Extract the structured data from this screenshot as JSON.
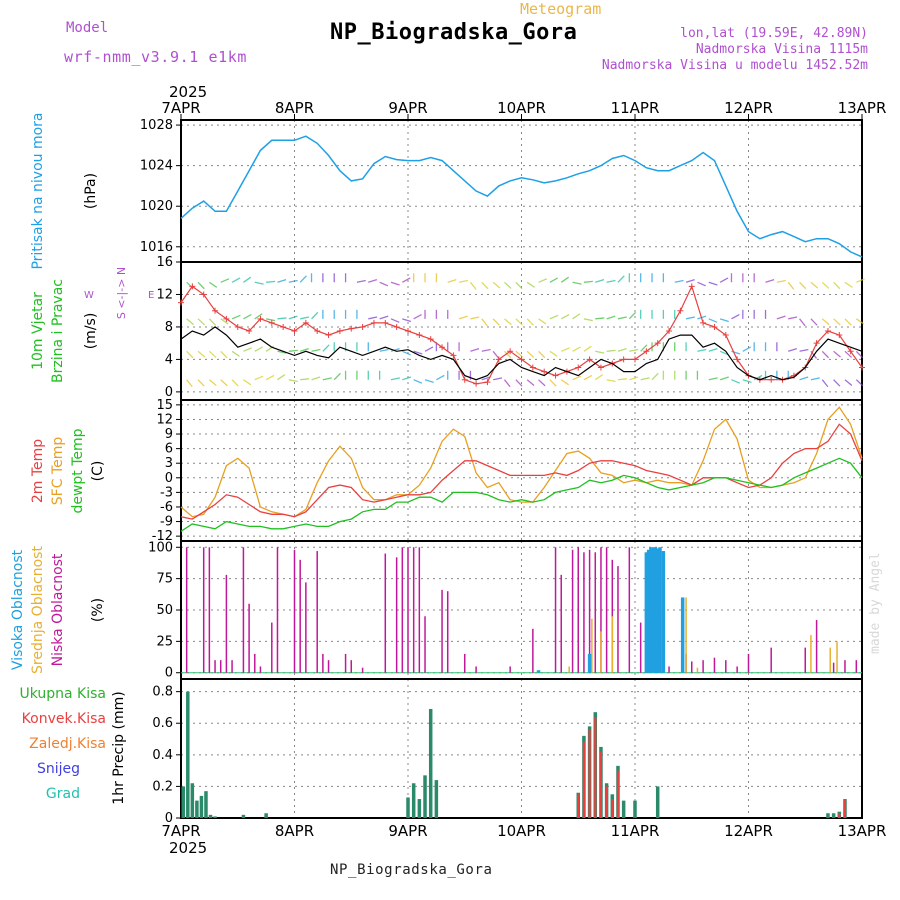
{
  "header": {
    "title": "NP_Biogradska_Gora",
    "subtitle": "Meteogram",
    "model_label": "Model",
    "model_name": "wrf-nmm_v3.9.1 e1km",
    "info": {
      "lonlat": "lon,lat (19.59E, 42.89N)",
      "elevation": "Nadmorska Visina 1115m",
      "model_elevation": "Nadmorska Visina u modelu 1452.52m"
    },
    "bottom_label": "NP_Biogradska_Gora",
    "made_by": "made by Angel"
  },
  "colors": {
    "pressure": "#1ea0e6",
    "wind_speed": "#000000",
    "wind_gust": "#e84040",
    "temp_2m": "#e84040",
    "temp_sfc": "#e8a020",
    "temp_dewpt": "#20c020",
    "cloud_high": "#20a0e0",
    "cloud_mid": "#e8b030",
    "cloud_low": "#c0189a",
    "precip_total": "#30b030",
    "precip_conv": "#e84040",
    "precip_frozen": "#f08030",
    "snow": "#4040e0",
    "hail": "#20c0b0",
    "grid": "#888888"
  },
  "chart_data": [
    {
      "type": "line",
      "panel": "pressure",
      "year": "2025",
      "top_ticks": [
        "7APR",
        "8APR",
        "9APR",
        "10APR",
        "11APR",
        "12APR",
        "13APR"
      ],
      "ylabel": "Pritisak na nivou mora",
      "unit": "(hPa)",
      "ylim": [
        1014.5,
        1028.5
      ],
      "yticks": [
        1016,
        1020,
        1024,
        1028
      ],
      "x_days": [
        0,
        0.1,
        0.2,
        0.3,
        0.4,
        0.5,
        0.6,
        0.7,
        0.8,
        0.9,
        1.0,
        1.1,
        1.2,
        1.3,
        1.4,
        1.5,
        1.6,
        1.7,
        1.8,
        1.9,
        2.0,
        2.1,
        2.2,
        2.3,
        2.4,
        2.5,
        2.6,
        2.7,
        2.8,
        2.9,
        3.0,
        3.1,
        3.2,
        3.3,
        3.4,
        3.5,
        3.6,
        3.7,
        3.8,
        3.9,
        4.0,
        4.1,
        4.2,
        4.3,
        4.4,
        4.5,
        4.6,
        4.7,
        4.8,
        4.9,
        5.0,
        5.1,
        5.2,
        5.3,
        5.4,
        5.5,
        5.6,
        5.7,
        5.8,
        5.9,
        6.0
      ],
      "series": [
        {
          "name": "pressure",
          "values": [
            1018.8,
            1019.8,
            1020.5,
            1019.5,
            1019.5,
            1021.5,
            1023.5,
            1025.5,
            1026.5,
            1026.5,
            1026.5,
            1026.9,
            1026.2,
            1025.0,
            1023.5,
            1022.5,
            1022.7,
            1024.2,
            1024.9,
            1024.6,
            1024.5,
            1024.5,
            1024.8,
            1024.5,
            1023.5,
            1022.5,
            1021.5,
            1021.0,
            1022.0,
            1022.5,
            1022.8,
            1022.6,
            1022.3,
            1022.5,
            1022.8,
            1023.2,
            1023.5,
            1024.0,
            1024.7,
            1025.0,
            1024.5,
            1023.8,
            1023.5,
            1023.5,
            1024.0,
            1024.5,
            1025.3,
            1024.5,
            1022.0,
            1019.5,
            1017.5,
            1016.8,
            1017.2,
            1017.5,
            1017.0,
            1016.5,
            1016.8,
            1016.8,
            1016.3,
            1015.5,
            1015.0
          ]
        }
      ]
    },
    {
      "type": "line",
      "panel": "wind",
      "ylabel": "10m Vjetar Brzina i Pravac",
      "unit": "(m/s)",
      "ylim": [
        -1,
        16
      ],
      "yticks": [
        0,
        4,
        8,
        12,
        16
      ],
      "compass": "S <-|-> N",
      "compass_w": "W",
      "compass_e": "E",
      "x_days": [
        0,
        0.1,
        0.2,
        0.3,
        0.4,
        0.5,
        0.6,
        0.7,
        0.8,
        0.9,
        1.0,
        1.1,
        1.2,
        1.3,
        1.4,
        1.5,
        1.6,
        1.7,
        1.8,
        1.9,
        2.0,
        2.1,
        2.2,
        2.3,
        2.4,
        2.5,
        2.6,
        2.7,
        2.8,
        2.9,
        3.0,
        3.1,
        3.2,
        3.3,
        3.4,
        3.5,
        3.6,
        3.7,
        3.8,
        3.9,
        4.0,
        4.1,
        4.2,
        4.3,
        4.4,
        4.5,
        4.6,
        4.7,
        4.8,
        4.9,
        5.0,
        5.1,
        5.2,
        5.3,
        5.4,
        5.5,
        5.6,
        5.7,
        5.8,
        5.9,
        6.0
      ],
      "series": [
        {
          "name": "wind_speed",
          "values": [
            6.5,
            7.5,
            7.0,
            8.0,
            7.0,
            5.5,
            6.0,
            6.5,
            5.5,
            5.0,
            4.5,
            5.0,
            4.5,
            4.2,
            5.5,
            5.0,
            4.5,
            5.0,
            5.5,
            5.0,
            5.2,
            4.5,
            4.0,
            4.5,
            4.0,
            2.0,
            1.5,
            2.0,
            3.5,
            4.0,
            3.0,
            2.5,
            2.0,
            3.0,
            2.5,
            2.0,
            3.0,
            4.0,
            3.5,
            2.5,
            2.5,
            3.5,
            4.0,
            6.5,
            7.0,
            7.0,
            5.5,
            6.0,
            5.0,
            3.0,
            2.0,
            1.5,
            2.0,
            1.5,
            1.8,
            3.0,
            5.0,
            6.5,
            6.0,
            5.5,
            5.0
          ]
        },
        {
          "name": "wind_gust",
          "values": [
            11,
            13,
            12,
            10,
            9,
            8,
            7.5,
            9,
            8.5,
            8,
            7.5,
            8.5,
            7.5,
            7,
            7.5,
            7.8,
            8,
            8.5,
            8.5,
            8,
            7.5,
            7,
            6.5,
            5.5,
            4.5,
            1.5,
            1,
            1.2,
            4,
            5,
            4,
            3,
            2.5,
            2,
            2.5,
            3,
            4,
            3,
            3.5,
            4,
            4,
            5,
            6,
            7.5,
            10,
            13,
            8.5,
            8,
            7,
            4,
            2,
            1.5,
            1.5,
            1.5,
            2,
            3,
            6,
            7.5,
            7,
            5,
            3
          ]
        }
      ]
    },
    {
      "type": "line",
      "panel": "temperature",
      "ylabels": [
        "2m Temp",
        "SFC Temp",
        "dewpt Temp"
      ],
      "unit": "(C)",
      "ylim": [
        -13,
        16
      ],
      "yticks": [
        -12,
        -9,
        -6,
        -3,
        0,
        3,
        6,
        9,
        12,
        15
      ],
      "x_days": [
        0,
        0.1,
        0.2,
        0.3,
        0.4,
        0.5,
        0.6,
        0.7,
        0.8,
        0.9,
        1.0,
        1.1,
        1.2,
        1.3,
        1.4,
        1.5,
        1.6,
        1.7,
        1.8,
        1.9,
        2.0,
        2.1,
        2.2,
        2.3,
        2.4,
        2.5,
        2.6,
        2.7,
        2.8,
        2.9,
        3.0,
        3.1,
        3.2,
        3.3,
        3.4,
        3.5,
        3.6,
        3.7,
        3.8,
        3.9,
        4.0,
        4.1,
        4.2,
        4.3,
        4.4,
        4.5,
        4.6,
        4.7,
        4.8,
        4.9,
        5.0,
        5.1,
        5.2,
        5.3,
        5.4,
        5.5,
        5.6,
        5.7,
        5.8,
        5.9,
        6.0
      ],
      "series": [
        {
          "name": "2m Temp",
          "values": [
            -8,
            -8.5,
            -7,
            -5.5,
            -3.5,
            -4,
            -5.5,
            -7,
            -7.5,
            -7.5,
            -8,
            -7,
            -4.5,
            -2,
            -1.5,
            -2,
            -4.5,
            -5,
            -4.5,
            -4,
            -3.5,
            -3.5,
            -3,
            -0.5,
            1.5,
            3.5,
            3.5,
            2.5,
            1.5,
            0.5,
            0.5,
            0.5,
            0.5,
            1.0,
            0.5,
            1.5,
            3,
            3.5,
            3.5,
            3,
            2.5,
            1.5,
            1.0,
            0.5,
            -0.5,
            -1.5,
            0,
            0,
            0,
            -1,
            -2,
            -1.5,
            0,
            3,
            5,
            6,
            6,
            7.5,
            11,
            9,
            3.5
          ]
        },
        {
          "name": "SFC Temp",
          "values": [
            -6,
            -8,
            -7.5,
            -4,
            2.5,
            4,
            2,
            -6,
            -7,
            -7.5,
            -8,
            -6.5,
            -1,
            3.5,
            6.5,
            4,
            -2,
            -4.5,
            -4.5,
            -3.5,
            -3.5,
            -1.5,
            2,
            7.5,
            10,
            8.5,
            1,
            -2,
            -1,
            -4.5,
            -5,
            -5,
            -2,
            1.5,
            5,
            5.5,
            4,
            1,
            0.5,
            -1,
            -0.5,
            -1,
            -0.5,
            -1,
            -1,
            -1.5,
            3.5,
            10,
            12,
            8,
            -0.5,
            -2,
            -2,
            -1.5,
            -1,
            0,
            5,
            12,
            14.5,
            11,
            4
          ]
        },
        {
          "name": "dewpt Temp",
          "values": [
            -11,
            -9.5,
            -10,
            -10.5,
            -9,
            -9.5,
            -10,
            -10,
            -10.5,
            -10.5,
            -10,
            -9.5,
            -10,
            -10,
            -9,
            -8.5,
            -7,
            -6.5,
            -6.5,
            -5,
            -5,
            -4,
            -4,
            -5,
            -3,
            -3,
            -3,
            -3.5,
            -4.5,
            -5,
            -4.5,
            -5,
            -4.5,
            -3,
            -2.5,
            -2,
            -0.5,
            -1,
            -0.5,
            0.5,
            0,
            -1,
            -2,
            -2.5,
            -2,
            -1.5,
            -1,
            0,
            0,
            -0.5,
            -1,
            -1.5,
            -2,
            -1.5,
            0,
            1,
            2,
            3,
            4,
            3,
            0
          ]
        }
      ]
    },
    {
      "type": "bar",
      "panel": "clouds",
      "ylabels": [
        "Visoka Oblacnost",
        "Srednja Oblacnost",
        "Niska Oblacnost"
      ],
      "unit": "(%)",
      "ylim": [
        -5,
        105
      ],
      "yticks": [
        0,
        25,
        50,
        75,
        100
      ],
      "series": [
        {
          "name": "Niska Oblacnost",
          "x": [
            0.05,
            0.2,
            0.25,
            0.3,
            0.35,
            0.4,
            0.45,
            0.55,
            0.6,
            0.65,
            0.7,
            0.8,
            0.85,
            1.0,
            1.05,
            1.1,
            1.2,
            1.25,
            1.3,
            1.45,
            1.5,
            1.6,
            1.8,
            1.9,
            1.95,
            2.0,
            2.05,
            2.1,
            2.15,
            2.3,
            2.35,
            2.5,
            2.6,
            2.9,
            3.1,
            3.3,
            3.35,
            3.45,
            3.5,
            3.55,
            3.6,
            3.65,
            3.7,
            3.75,
            3.8,
            3.85,
            3.95,
            4.05,
            4.1,
            4.2,
            4.3,
            4.45,
            4.5,
            4.6,
            4.7,
            4.8,
            4.9,
            5.0,
            5.2,
            5.5,
            5.6,
            5.75,
            5.85,
            5.95
          ],
          "values": [
            100,
            100,
            100,
            10,
            10,
            78,
            10,
            100,
            55,
            15,
            5,
            40,
            100,
            98,
            90,
            72,
            97,
            15,
            10,
            15,
            10,
            4,
            95,
            92,
            100,
            100,
            100,
            100,
            45,
            66,
            65,
            15,
            5,
            5,
            35,
            100,
            78,
            98,
            100,
            96,
            98,
            96,
            100,
            100,
            90,
            85,
            100,
            40,
            8,
            15,
            5,
            15,
            9,
            10,
            12,
            10,
            5,
            15,
            20,
            20,
            42,
            8,
            10,
            10
          ]
        },
        {
          "name": "Srednja Oblacnost",
          "x": [
            3.42,
            3.62,
            3.7,
            3.8,
            4.45,
            4.55,
            5.55,
            5.72,
            5.78
          ],
          "values": [
            5,
            43,
            33,
            45,
            60,
            4,
            30,
            20,
            25
          ]
        },
        {
          "name": "Visoka Oblacnost",
          "x": [
            3.15,
            3.6,
            4.1,
            4.12,
            4.14,
            4.16,
            4.18,
            4.2,
            4.22,
            4.25,
            4.42
          ],
          "values": [
            2,
            15,
            96,
            98,
            100,
            100,
            100,
            99,
            100,
            97,
            60
          ]
        }
      ]
    },
    {
      "type": "bar",
      "panel": "precipitation",
      "ylabels": [
        "Ukupna Kisa",
        "Konvek.Kisa",
        "Zaledj.Kisa",
        "Snijeg",
        "Grad"
      ],
      "unit": "1hr Precip (mm)",
      "ylim": [
        0,
        0.88
      ],
      "yticks": [
        0,
        0.2,
        0.4,
        0.6,
        0.8
      ],
      "bottom_ticks": [
        "7APR",
        "8APR",
        "9APR",
        "10APR",
        "11APR",
        "12APR",
        "13APR"
      ],
      "year": "2025",
      "series": [
        {
          "name": "Ukupna Kisa",
          "x": [
            0.02,
            0.06,
            0.1,
            0.14,
            0.18,
            0.22,
            0.26,
            0.3,
            0.55,
            0.75,
            2.0,
            2.05,
            2.1,
            2.15,
            2.2,
            2.25,
            3.5,
            3.55,
            3.6,
            3.65,
            3.7,
            3.75,
            3.8,
            3.85,
            3.9,
            4.0,
            4.2,
            5.7,
            5.75,
            5.8,
            5.85
          ],
          "values": [
            0.2,
            0.8,
            0.22,
            0.11,
            0.14,
            0.17,
            0.02,
            0.01,
            0.02,
            0.03,
            0.13,
            0.22,
            0.12,
            0.27,
            0.69,
            0.24,
            0.16,
            0.52,
            0.58,
            0.67,
            0.45,
            0.22,
            0.15,
            0.33,
            0.11,
            0.11,
            0.2,
            0.03,
            0.03,
            0.04,
            0.12
          ]
        },
        {
          "name": "Konvek.Kisa",
          "x": [
            3.5,
            3.55,
            3.6,
            3.65,
            3.7,
            3.75,
            3.8,
            3.85,
            5.8,
            5.85
          ],
          "values": [
            0.15,
            0.48,
            0.56,
            0.64,
            0.42,
            0.2,
            0.12,
            0.3,
            0.03,
            0.12
          ]
        }
      ]
    }
  ]
}
